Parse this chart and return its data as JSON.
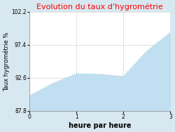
{
  "title": "Evolution du taux d'hygrométrie",
  "title_color": "#ff0000",
  "xlabel": "heure par heure",
  "ylabel": "Taux hygrométrie %",
  "background_color": "#d8e8f0",
  "plot_bg_color": "#ffffff",
  "line_color": "#5aafc8",
  "fill_color": "#c0dff0",
  "ylim": [
    87.8,
    102.2
  ],
  "xlim": [
    0,
    3
  ],
  "yticks": [
    87.8,
    92.6,
    97.4,
    102.2
  ],
  "xticks": [
    0,
    1,
    2,
    3
  ],
  "x": [
    0,
    0.5,
    1.0,
    1.5,
    2.0,
    2.5,
    3.0
  ],
  "y": [
    90.0,
    91.8,
    93.2,
    93.1,
    92.8,
    96.5,
    99.2
  ],
  "title_fontsize": 8,
  "xlabel_fontsize": 7,
  "ylabel_fontsize": 6,
  "tick_fontsize": 5.5
}
